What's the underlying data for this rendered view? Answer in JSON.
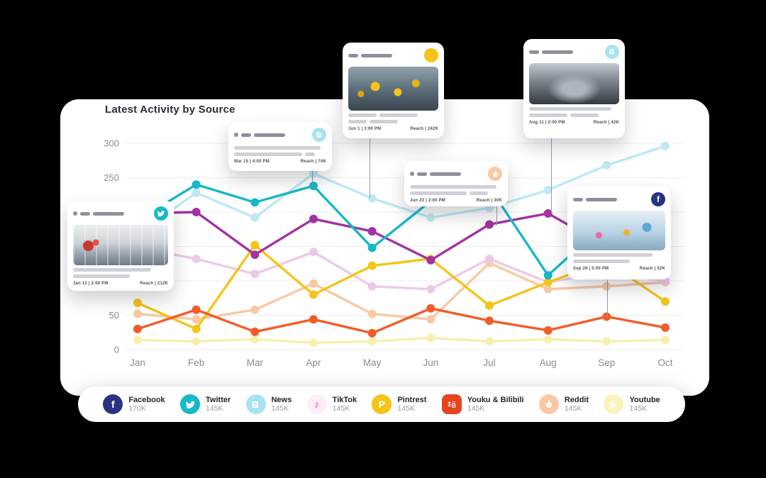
{
  "panel": {
    "title": "Latest Activity by Source"
  },
  "chart_data": {
    "type": "line",
    "title": "Latest Activity by Source",
    "categories": [
      "Jan",
      "Feb",
      "Mar",
      "Apr",
      "May",
      "Jun",
      "Jul",
      "Aug",
      "Sep",
      "Oct"
    ],
    "ylim": [
      0,
      300
    ],
    "yticks": [
      0,
      50,
      100,
      150,
      200,
      250,
      300
    ],
    "grid": true,
    "legend_position": "bottom",
    "series": [
      {
        "name": "Youtube",
        "color": "#f6efae",
        "values": [
          14,
          12,
          15,
          10,
          12,
          17,
          12,
          15,
          12,
          14
        ]
      },
      {
        "name": "Reddit",
        "color": "#f8c9a4",
        "values": [
          52,
          44,
          58,
          96,
          52,
          44,
          126,
          88,
          92,
          98
        ]
      },
      {
        "name": "TikTok",
        "color": "#eccae7",
        "values": [
          148,
          132,
          110,
          142,
          92,
          88,
          132,
          98,
          112,
          100
        ]
      },
      {
        "name": "News",
        "color": "#bce9f3",
        "values": [
          168,
          228,
          192,
          256,
          220,
          192,
          206,
          232,
          268,
          296
        ]
      },
      {
        "name": "Pintrest",
        "color": "#f4c418",
        "values": [
          68,
          30,
          152,
          80,
          122,
          132,
          64,
          98,
          128,
          70
        ]
      },
      {
        "name": "Youku & Bilibili",
        "color": "#f25c2a",
        "values": [
          30,
          58,
          26,
          44,
          24,
          60,
          42,
          28,
          48,
          32
        ]
      },
      {
        "name": "Facebook",
        "color": "#a332a2",
        "values": [
          198,
          200,
          138,
          190,
          172,
          130,
          182,
          198,
          150,
          118
        ]
      },
      {
        "name": "Twitter",
        "color": "#17b8c9",
        "values": [
          188,
          240,
          214,
          238,
          148,
          216,
          236,
          108,
          185,
          158
        ]
      }
    ]
  },
  "legend": {
    "items": [
      {
        "name": "Facebook",
        "value": "170K",
        "color": "#2a3382",
        "glyph": "f"
      },
      {
        "name": "Twitter",
        "value": "145K",
        "color": "#17b8c9"
      },
      {
        "name": "News",
        "value": "145K",
        "color": "#a9e2f0"
      },
      {
        "name": "TikTok",
        "value": "145K",
        "color": "#fdeef7",
        "glyph": "♪",
        "glyph_color": "#e84393"
      },
      {
        "name": "Pintrest",
        "value": "145K",
        "color": "#f4c418",
        "glyph": "P"
      },
      {
        "name": "Youku & Bilibili",
        "value": "145K",
        "color": "#e8431f"
      },
      {
        "name": "Reddit",
        "value": "145K",
        "color": "#f8c9a4"
      },
      {
        "name": "Youtube",
        "value": "145K",
        "color": "#faf3bd",
        "glyph": "▶",
        "glyph_color": "#ffffff"
      }
    ]
  },
  "cards": [
    {
      "network": "Twitter",
      "date": "Jan 12 | 2:00 PM",
      "reach": "Reach | 212K"
    },
    {
      "network": "News",
      "date": "Mar 15 | 4:00 PM",
      "reach": "Reach | 74K"
    },
    {
      "network": "Pintrest",
      "date": "Jun 1 | 3:00 PM",
      "reach": "Reach | 242K"
    },
    {
      "network": "Reddit",
      "date": "Jun 23 | 2:00 PM",
      "reach": "Reach | 30K"
    },
    {
      "network": "News",
      "date": "Aug 11 | 2:00 PM",
      "reach": "Reach | 42K"
    },
    {
      "network": "Facebook",
      "date": "Sep 28 | 5:00 PM",
      "reach": "Reach | 52K"
    }
  ]
}
